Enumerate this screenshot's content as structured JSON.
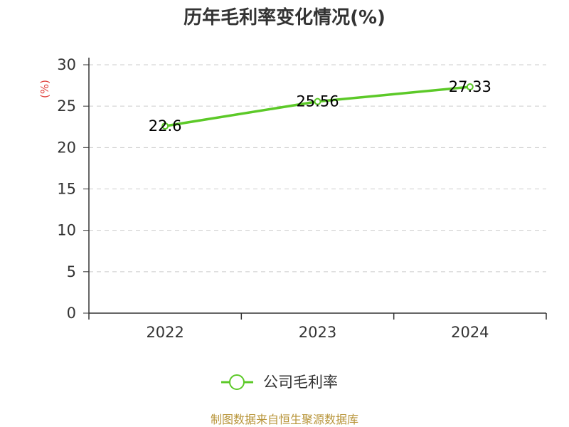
{
  "chart_data": {
    "type": "line",
    "title": "历年毛利率变化情况(%)",
    "ylabel": "(%)",
    "xlabel": "",
    "categories": [
      "2022",
      "2023",
      "2024"
    ],
    "series": [
      {
        "name": "公司毛利率",
        "values": [
          22.6,
          25.56,
          27.33
        ]
      }
    ],
    "data_labels": [
      "22.6",
      "25.56",
      "27.33"
    ],
    "ylim": [
      0,
      30
    ],
    "yticks": [
      0,
      5,
      10,
      15,
      20,
      25,
      30
    ],
    "ytick_labels": [
      "0",
      "5",
      "10",
      "15",
      "20",
      "25",
      "30"
    ],
    "grid": true,
    "legend": "bottom-center",
    "colors": {
      "series": "#5cc928",
      "grid": "#cccccc",
      "axis": "#333333",
      "unit_label": "#e0413d",
      "source": "#b8953a"
    }
  },
  "footer": {
    "source_text": "制图数据来自恒生聚源数据库"
  }
}
